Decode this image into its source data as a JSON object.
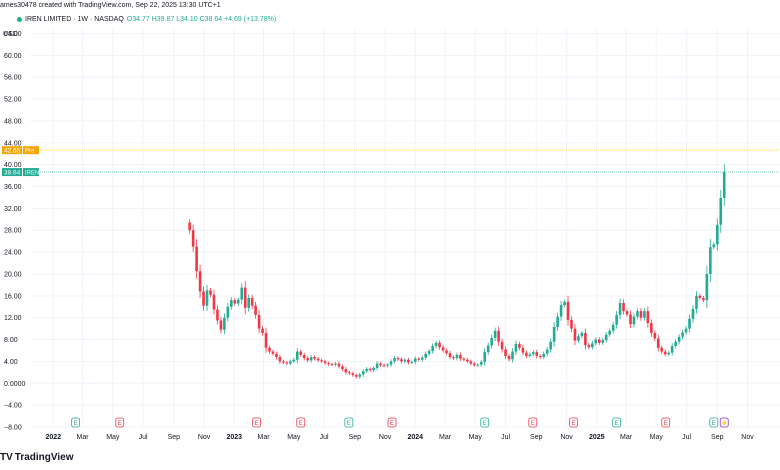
{
  "header": {
    "created_line": "ames30478 created with TradingView.com, Sep 22, 2025 13:30 UTC+1",
    "currency": "USD",
    "symbol_line": "IREN LIMITED · 1W · NASDAQ",
    "ohlc_line": "O34.77  H39.87  L34.10  C38.64  +4.69 (+13.78%)"
  },
  "footer": {
    "brand": "TradingView",
    "logo": "TV"
  },
  "colors": {
    "up": "#22ab94",
    "down": "#f23645",
    "grid": "#f0f3fa",
    "axis_text": "#131722",
    "pre_line": "#f7a600",
    "last_line": "#22ab94"
  },
  "chart_data": {
    "type": "candlestick",
    "ylim": [
      -8,
      65
    ],
    "yticks": [
      64,
      60,
      56,
      52,
      48,
      44,
      40,
      36,
      32,
      28,
      24,
      20,
      16,
      12,
      8,
      4,
      0,
      -4,
      -8
    ],
    "ytick_labels": [
      "64.00",
      "60.00",
      "56.00",
      "52.00",
      "48.00",
      "44.00",
      "40.00",
      "36.00",
      "32.00",
      "28.00",
      "24.00",
      "20.00",
      "16.00",
      "12.00",
      "8.00",
      "4.00",
      "0.0000",
      "−4.00",
      "−8.00"
    ],
    "xlim": [
      "2021-11-15",
      "2025-11-10"
    ],
    "xticks": [
      {
        "date": "2022-01-01",
        "label": "2022",
        "bold": true
      },
      {
        "date": "2022-03-01",
        "label": "Mar"
      },
      {
        "date": "2022-05-01",
        "label": "May"
      },
      {
        "date": "2022-07-01",
        "label": "Jul"
      },
      {
        "date": "2022-09-01",
        "label": "Sep"
      },
      {
        "date": "2022-11-01",
        "label": "Nov"
      },
      {
        "date": "2023-01-01",
        "label": "2023",
        "bold": true
      },
      {
        "date": "2023-03-01",
        "label": "Mar"
      },
      {
        "date": "2023-05-01",
        "label": "May"
      },
      {
        "date": "2023-07-01",
        "label": "Jul"
      },
      {
        "date": "2023-09-01",
        "label": "Sep"
      },
      {
        "date": "2023-11-01",
        "label": "Nov"
      },
      {
        "date": "2024-01-01",
        "label": "2024",
        "bold": true
      },
      {
        "date": "2024-03-01",
        "label": "Mar"
      },
      {
        "date": "2024-05-01",
        "label": "May"
      },
      {
        "date": "2024-07-01",
        "label": "Jul"
      },
      {
        "date": "2024-09-01",
        "label": "Sep"
      },
      {
        "date": "2024-11-01",
        "label": "Nov"
      },
      {
        "date": "2025-01-01",
        "label": "2025",
        "bold": true
      },
      {
        "date": "2025-03-01",
        "label": "Mar"
      },
      {
        "date": "2025-05-01",
        "label": "May"
      },
      {
        "date": "2025-07-01",
        "label": "Jul"
      },
      {
        "date": "2025-09-01",
        "label": "Sep"
      },
      {
        "date": "2025-11-01",
        "label": "Nov"
      }
    ],
    "price_labels": [
      {
        "value": 42.65,
        "label": "42.65",
        "tag": "Pre",
        "color": "#f7a600"
      },
      {
        "value": 38.64,
        "label": "38.64",
        "tag": "IREN",
        "color": "#22ab94"
      }
    ],
    "events": [
      {
        "date": "2022-02-15",
        "type": "E",
        "color": "#22ab94"
      },
      {
        "date": "2022-05-15",
        "type": "E",
        "color": "#f23645"
      },
      {
        "date": "2023-02-15",
        "type": "E",
        "color": "#f23645"
      },
      {
        "date": "2023-05-15",
        "type": "E",
        "color": "#f23645"
      },
      {
        "date": "2023-08-20",
        "type": "E",
        "color": "#22ab94"
      },
      {
        "date": "2023-11-15",
        "type": "E",
        "color": "#f23645"
      },
      {
        "date": "2024-05-20",
        "type": "E",
        "color": "#22ab94"
      },
      {
        "date": "2024-08-25",
        "type": "E",
        "color": "#f23645"
      },
      {
        "date": "2024-11-15",
        "type": "E",
        "color": "#f23645"
      },
      {
        "date": "2025-02-10",
        "type": "E",
        "color": "#22ab94"
      },
      {
        "date": "2025-05-20",
        "type": "E",
        "color": "#f23645"
      },
      {
        "date": "2025-08-25",
        "type": "E",
        "color": "#22ab94"
      },
      {
        "date": "2025-09-15",
        "type": "D",
        "color": "#9c27b0"
      }
    ],
    "closes": [
      28.0,
      25.0,
      20.5,
      16.8,
      14.2,
      17.0,
      16.2,
      13.5,
      11.5,
      9.8,
      12.0,
      14.0,
      15.2,
      14.6,
      15.3,
      17.5,
      13.8,
      15.6,
      14.2,
      12.5,
      10.0,
      9.2,
      6.5,
      5.8,
      5.4,
      4.8,
      4.0,
      3.8,
      3.6,
      4.0,
      4.3,
      5.8,
      5.2,
      4.6,
      4.2,
      4.8,
      4.5,
      4.2,
      4.0,
      3.7,
      3.5,
      3.4,
      3.6,
      3.1,
      2.6,
      2.0,
      1.8,
      1.5,
      1.2,
      1.6,
      2.2,
      2.6,
      2.4,
      2.8,
      3.6,
      3.3,
      3.2,
      3.4,
      4.0,
      4.6,
      4.4,
      4.0,
      4.3,
      3.8,
      3.9,
      4.5,
      4.3,
      4.7,
      5.4,
      5.9,
      6.8,
      7.4,
      6.6,
      6.0,
      5.5,
      4.8,
      4.6,
      5.2,
      4.5,
      4.3,
      4.0,
      3.6,
      3.3,
      3.4,
      3.9,
      5.7,
      6.9,
      8.3,
      9.6,
      7.6,
      6.2,
      5.0,
      4.4,
      5.8,
      7.2,
      6.5,
      5.6,
      5.0,
      5.3,
      5.7,
      5.0,
      4.8,
      5.4,
      6.2,
      7.6,
      10.3,
      12.2,
      14.3,
      14.9,
      11.6,
      10.0,
      7.8,
      8.6,
      9.2,
      7.0,
      6.6,
      7.3,
      8.0,
      7.4,
      7.9,
      8.9,
      9.6,
      10.7,
      12.5,
      14.7,
      13.2,
      12.6,
      10.8,
      12.2,
      13.2,
      12.0,
      13.2,
      11.0,
      9.2,
      8.2,
      6.5,
      5.8,
      5.3,
      5.6,
      6.8,
      7.6,
      8.5,
      9.3,
      10.0,
      11.8,
      13.6,
      16.0,
      15.6,
      15.2,
      20.0,
      24.9,
      25.4,
      29.0,
      33.9,
      38.64
    ]
  }
}
